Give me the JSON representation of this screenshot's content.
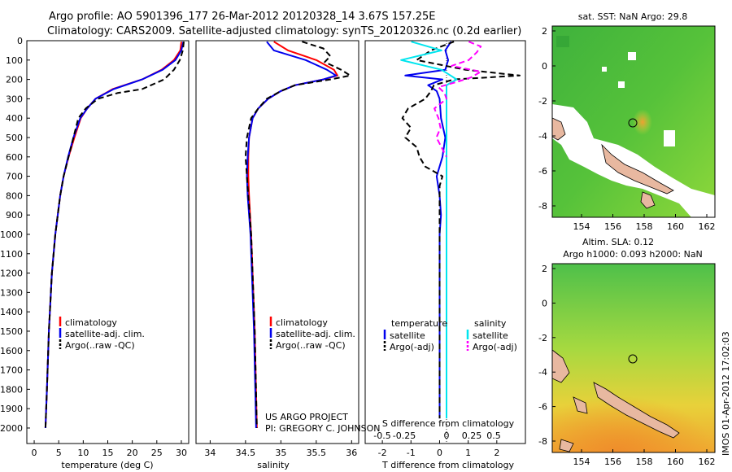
{
  "header": {
    "line1": "Argo profile: AO 5901396_177 26-Mar-2012 20120328_14 3.67S 157.25E",
    "line2": "Climatology: CARS2009. Satellite-adjusted climatology: synTS_20120326.nc (0.2d earlier)"
  },
  "colors": {
    "climatology": "#ff0000",
    "satellite": "#0000ee",
    "argo": "#000000",
    "sat_sal": "#00e5ee",
    "argo_sal_adj": "#ff00ff"
  },
  "chart_data": [
    {
      "type": "line",
      "name": "temperature-profile",
      "xlabel": "temperature (deg C)",
      "ylabel": "",
      "xlim": [
        -1.5,
        31.5
      ],
      "ylim": [
        0,
        2080
      ],
      "xticks": [
        "0",
        "5",
        "10",
        "15",
        "20",
        "25",
        "30"
      ],
      "yticks": [
        "0",
        "100",
        "200",
        "300",
        "400",
        "500",
        "600",
        "700",
        "800",
        "900",
        "1000",
        "1100",
        "1200",
        "1300",
        "1400",
        "1500",
        "1600",
        "1700",
        "1800",
        "1900",
        "2000"
      ],
      "legend": [
        "climatology",
        "satellite-adj. clim.",
        "Argo(..raw -QC)"
      ],
      "series": [
        {
          "name": "climatology",
          "color": "#ff0000",
          "depth": [
            5,
            50,
            100,
            150,
            200,
            250,
            300,
            350,
            400,
            500,
            600,
            700,
            800,
            1000,
            1200,
            1500,
            1800,
            2000
          ],
          "values": [
            30,
            29.8,
            28.5,
            26,
            22,
            16,
            12.5,
            10.8,
            9.5,
            8.2,
            7,
            6,
            5.3,
            4.3,
            3.6,
            3,
            2.6,
            2.3
          ]
        },
        {
          "name": "satellite-adj. clim.",
          "color": "#0000ee",
          "depth": [
            5,
            50,
            100,
            150,
            200,
            250,
            300,
            350,
            400,
            500,
            600,
            700,
            800,
            1000,
            1200,
            1500,
            1800,
            2000
          ],
          "values": [
            30.4,
            30,
            28.8,
            26.2,
            22,
            16.2,
            12.5,
            10.8,
            9.4,
            8,
            6.9,
            6,
            5.3,
            4.3,
            3.6,
            3,
            2.6,
            2.3
          ]
        },
        {
          "name": "Argo(..raw -QC)",
          "color": "#000000",
          "dashed": true,
          "depth": [
            5,
            50,
            100,
            150,
            200,
            250,
            270,
            300,
            350,
            400,
            450,
            500,
            600,
            700,
            800,
            1000,
            1200,
            1500,
            1800,
            2000
          ],
          "values": [
            30.5,
            30.3,
            29.7,
            28.5,
            26.5,
            22,
            17,
            13,
            10.5,
            9,
            8.5,
            8,
            7,
            6,
            5.3,
            4.3,
            3.6,
            3,
            2.6,
            2.3
          ]
        }
      ]
    },
    {
      "type": "line",
      "name": "salinity-profile",
      "xlabel": "salinity",
      "xlim": [
        33.8,
        36.1
      ],
      "ylim": [
        0,
        2080
      ],
      "xticks": [
        "34",
        "34.5",
        "35",
        "35.5",
        "36"
      ],
      "legend": [
        "climatology",
        "satellite-adj. clim.",
        "Argo(..raw -QC)"
      ],
      "series": [
        {
          "name": "climatology",
          "color": "#ff0000",
          "depth": [
            5,
            50,
            100,
            150,
            180,
            200,
            230,
            260,
            300,
            350,
            400,
            500,
            600,
            700,
            800,
            1000,
            1500,
            2000
          ],
          "values": [
            34.9,
            35.1,
            35.5,
            35.75,
            35.8,
            35.6,
            35.2,
            35,
            34.82,
            34.68,
            34.6,
            34.55,
            34.54,
            34.54,
            34.55,
            34.58,
            34.63,
            34.66
          ]
        },
        {
          "name": "satellite-adj. clim.",
          "color": "#0000ee",
          "depth": [
            5,
            50,
            100,
            150,
            180,
            200,
            230,
            260,
            300,
            350,
            400,
            500,
            600,
            700,
            800,
            1000,
            1500,
            2000
          ],
          "values": [
            34.8,
            34.9,
            35.35,
            35.65,
            35.78,
            35.6,
            35.2,
            35,
            34.82,
            34.68,
            34.6,
            34.55,
            34.53,
            34.52,
            34.53,
            34.57,
            34.62,
            34.65
          ]
        },
        {
          "name": "Argo(..raw -QC)",
          "color": "#000000",
          "dashed": true,
          "depth": [
            5,
            40,
            80,
            110,
            150,
            180,
            200,
            230,
            260,
            300,
            350,
            400,
            500,
            600,
            700,
            800,
            1000,
            1500,
            2000
          ],
          "values": [
            35.3,
            35.6,
            35.7,
            35.62,
            35.85,
            35.98,
            35.7,
            35.2,
            35,
            34.8,
            34.68,
            34.58,
            34.52,
            34.5,
            34.52,
            34.54,
            34.58,
            34.63,
            34.66
          ]
        }
      ],
      "annotation": [
        "US ARGO PROJECT",
        "PI: GREGORY C. JOHNSON"
      ]
    },
    {
      "type": "line",
      "name": "difference-profile",
      "xlabel": "T difference from climatology",
      "xlabel_top": "S difference from climatology",
      "xlim": [
        -2.6,
        3.0
      ],
      "ylim": [
        0,
        2080
      ],
      "xticks": [
        "-2",
        "-1",
        "0",
        "1",
        "2"
      ],
      "sticks": [
        "-0.5",
        "-0.25",
        "0",
        "0.25",
        "0.5"
      ],
      "legend_headers": [
        "temperature",
        "salinity"
      ],
      "legend": [
        "satellite",
        "Argo(-adj)",
        "satellite",
        "Argo(-adj)"
      ],
      "series": [
        {
          "name": "T satellite",
          "color": "#0000ee",
          "depth": [
            5,
            50,
            100,
            150,
            180,
            200,
            230,
            260,
            300,
            400,
            500,
            600,
            700,
            800,
            900,
            1000,
            1200,
            1500,
            1800,
            1950
          ],
          "values": [
            0.4,
            0.2,
            0.3,
            0.2,
            -1.2,
            0.1,
            -0.4,
            -0.1,
            0,
            0.05,
            0.2,
            0.1,
            -0.1,
            0,
            0.05,
            0,
            0,
            0,
            0,
            0
          ]
        },
        {
          "name": "T Argo(-adj)",
          "color": "#000000",
          "dashed": true,
          "depth": [
            5,
            50,
            100,
            150,
            180,
            200,
            230,
            260,
            300,
            350,
            400,
            450,
            500,
            550,
            600,
            650,
            700,
            750,
            800,
            900,
            1000,
            1200,
            1500,
            1800,
            1950
          ],
          "values": [
            0.5,
            -0.3,
            -0.8,
            0.9,
            2.8,
            0.5,
            -0.2,
            -0.3,
            -0.5,
            -1.1,
            -1.3,
            -1.0,
            -1.2,
            -0.8,
            -0.7,
            -0.5,
            0.1,
            0,
            0,
            0,
            0,
            0,
            0,
            0,
            0
          ]
        },
        {
          "name": "S satellite",
          "color": "#00e5ee",
          "depth": [
            5,
            50,
            100,
            150,
            180,
            200,
            230,
            260,
            300,
            400,
            600,
            800,
            1000,
            1500,
            1950
          ],
          "values": [
            -0.35,
            -0.05,
            -0.45,
            -0.05,
            0.04,
            0.1,
            0,
            0,
            0,
            0,
            0,
            0,
            0,
            0,
            0
          ]
        },
        {
          "name": "S Argo(-adj)",
          "color": "#ff00ff",
          "dashed": true,
          "depth": [
            5,
            30,
            60,
            100,
            130,
            160,
            190,
            210,
            240,
            270,
            300,
            350,
            400,
            450,
            500,
            550,
            600
          ],
          "values": [
            0.22,
            0.34,
            0.3,
            0.22,
            0.05,
            0.34,
            0.24,
            0.12,
            -0.08,
            -0.02,
            0,
            -0.12,
            -0.08,
            -0.06,
            -0.1,
            -0.05,
            0
          ]
        }
      ]
    }
  ],
  "maps": {
    "sst": {
      "title": "sat. SST: NaN Argo: 29.8",
      "lat_ticks": [
        "2",
        "0",
        "-2",
        "-4",
        "-6",
        "-8"
      ],
      "lon_ticks": [
        "154",
        "156",
        "158",
        "160",
        "162"
      ]
    },
    "sla": {
      "title": "Altim. SLA: 0.12",
      "subtitle": "Argo h1000: 0.093 h2000: NaN",
      "lat_ticks": [
        "2",
        "0",
        "-2",
        "-4",
        "-6",
        "-8"
      ],
      "lon_ticks": [
        "154",
        "156",
        "158",
        "160",
        "162"
      ]
    },
    "credit": "IMOS 01-Apr-2012 17:02:03"
  }
}
